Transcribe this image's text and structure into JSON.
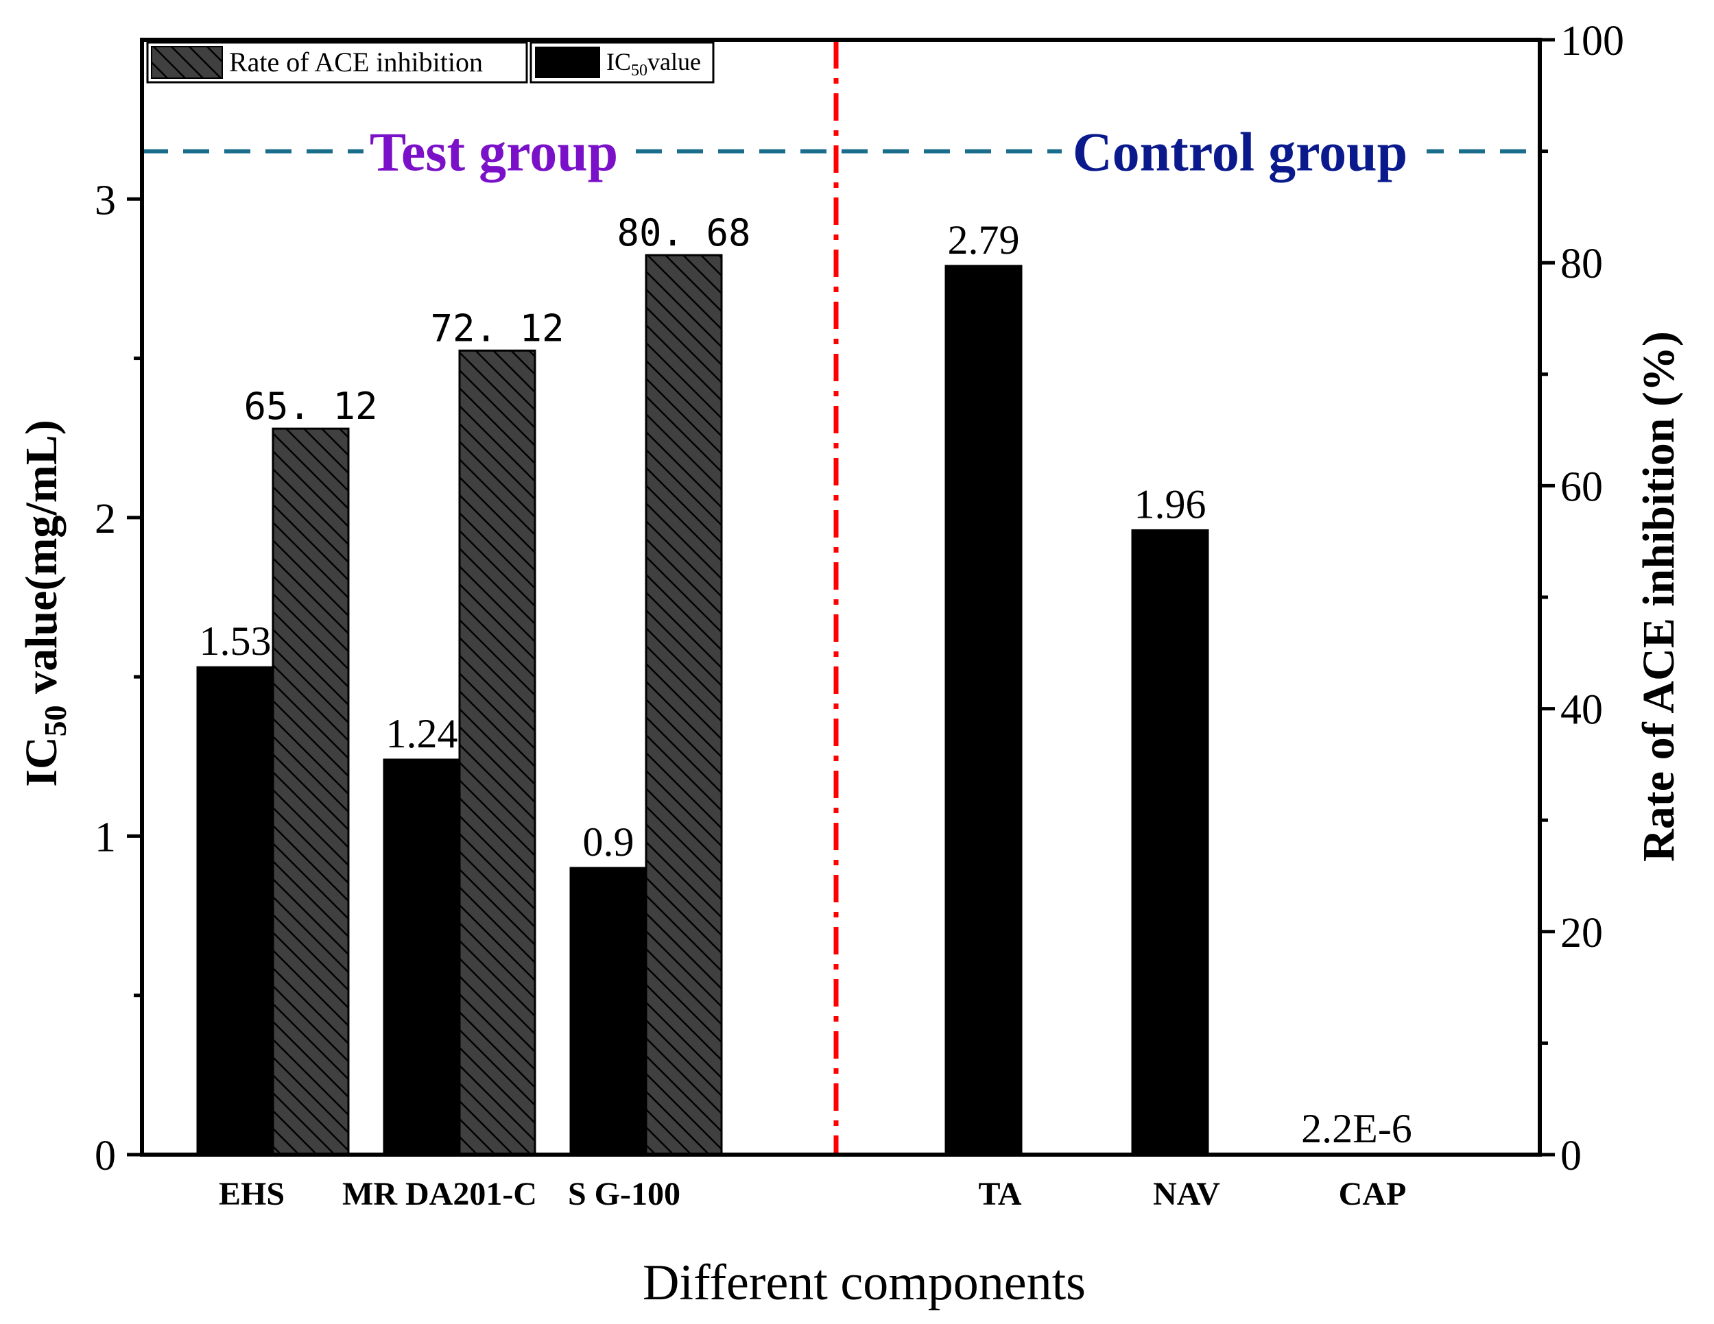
{
  "colors": {
    "ic50_bar": "#000000",
    "rate_bar": "#404040",
    "divider": "#ff0000",
    "dashed_line": "#1a6e8c",
    "test_group_label": "#7a10c8",
    "control_group_label": "#0a1a8c"
  },
  "chart_data": {
    "type": "bar",
    "xlabel": "Different components",
    "ylabel_main": "IC",
    "ylabel_sub": "50",
    "ylabel_rest": " value(mg/mL)",
    "y2label": "Rate of ACE inhibition (%)",
    "ylim": [
      0,
      3.5
    ],
    "y2lim": [
      0,
      100
    ],
    "yticks": [
      "0",
      "1",
      "2",
      "3"
    ],
    "y2ticks": [
      "0",
      "20",
      "40",
      "60",
      "80",
      "100"
    ],
    "categories": [
      "EHS",
      "MR DA201-C",
      "S G-100",
      "TA",
      "NAV",
      "CAP"
    ],
    "groups": {
      "test": "Test group",
      "control": "Control group",
      "dashed_level_y2": 90
    },
    "legend": {
      "rate_label": "Rate of ACE inhibition",
      "ic50_label_main": "IC",
      "ic50_label_sub": "50",
      "ic50_label_rest": "value",
      "position": "top-left"
    },
    "series": [
      {
        "name": "IC50 value",
        "axis": "left",
        "values": [
          1.53,
          1.24,
          0.9,
          2.79,
          1.96,
          2.2e-06
        ],
        "labels": [
          "1.53",
          "1.24",
          "0.9",
          "2.79",
          "1.96",
          "2.2E-6"
        ]
      },
      {
        "name": "Rate of ACE inhibition",
        "axis": "right",
        "values": [
          65.12,
          72.12,
          80.68,
          null,
          null,
          null
        ],
        "labels": [
          "65. 12",
          "72. 12",
          "80. 68",
          null,
          null,
          null
        ]
      }
    ]
  }
}
